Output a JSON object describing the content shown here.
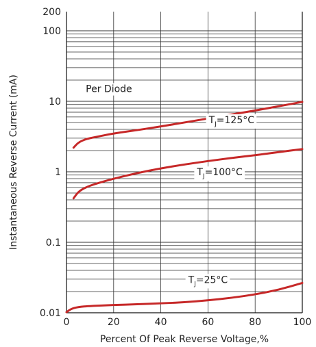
{
  "chart_data": {
    "type": "line",
    "xlabel": "Percent Of Peak Reverse Voltage,%",
    "ylabel": "Instantaneous Reverse Current (mA)",
    "xlim": [
      0,
      100
    ],
    "ylim": [
      0.01,
      200
    ],
    "y_scale": "log",
    "grid": true,
    "x_ticks": [
      {
        "value": 0,
        "label": "0"
      },
      {
        "value": 20,
        "label": "20"
      },
      {
        "value": 40,
        "label": "40"
      },
      {
        "value": 60,
        "label": "60"
      },
      {
        "value": 80,
        "label": "80"
      },
      {
        "value": 100,
        "label": "100"
      }
    ],
    "y_ticks": [
      {
        "value": 0.01,
        "label": "0.01"
      },
      {
        "value": 0.1,
        "label": "0.1"
      },
      {
        "value": 1,
        "label": "1"
      },
      {
        "value": 10,
        "label": "10"
      },
      {
        "value": 100,
        "label": "100"
      },
      {
        "value": 200,
        "label": "200"
      }
    ],
    "line_color": "#c62828",
    "series": [
      {
        "name_main": "T",
        "name_sub": "J",
        "name_rest": "=125°C",
        "label_anchor": [
          70,
          4.9
        ],
        "x": [
          3,
          5,
          8,
          12,
          20,
          30,
          40,
          50,
          60,
          70,
          80,
          90,
          100
        ],
        "y": [
          2.2,
          2.6,
          2.9,
          3.1,
          3.5,
          3.9,
          4.4,
          5.0,
          5.7,
          6.5,
          7.4,
          8.5,
          9.8
        ]
      },
      {
        "name_main": "T",
        "name_sub": "J",
        "name_rest": "=100°C",
        "label_anchor": [
          65,
          0.89
        ],
        "x": [
          3,
          5,
          8,
          12,
          20,
          30,
          40,
          50,
          60,
          70,
          80,
          90,
          100
        ],
        "y": [
          0.42,
          0.52,
          0.6,
          0.67,
          0.8,
          0.96,
          1.12,
          1.27,
          1.42,
          1.57,
          1.72,
          1.9,
          2.1
        ]
      },
      {
        "name_main": "T",
        "name_sub": "J",
        "name_rest": "=25°C",
        "label_anchor": [
          60,
          0.0265
        ],
        "x": [
          0,
          2,
          5,
          10,
          20,
          30,
          40,
          50,
          60,
          70,
          80,
          90,
          100
        ],
        "y": [
          0.0102,
          0.0114,
          0.0121,
          0.0125,
          0.0129,
          0.0132,
          0.0136,
          0.0141,
          0.015,
          0.0163,
          0.0182,
          0.0212,
          0.0265
        ]
      }
    ],
    "annotations": [
      {
        "text": "Per Diode",
        "x": 18,
        "y": 13.5
      }
    ]
  }
}
